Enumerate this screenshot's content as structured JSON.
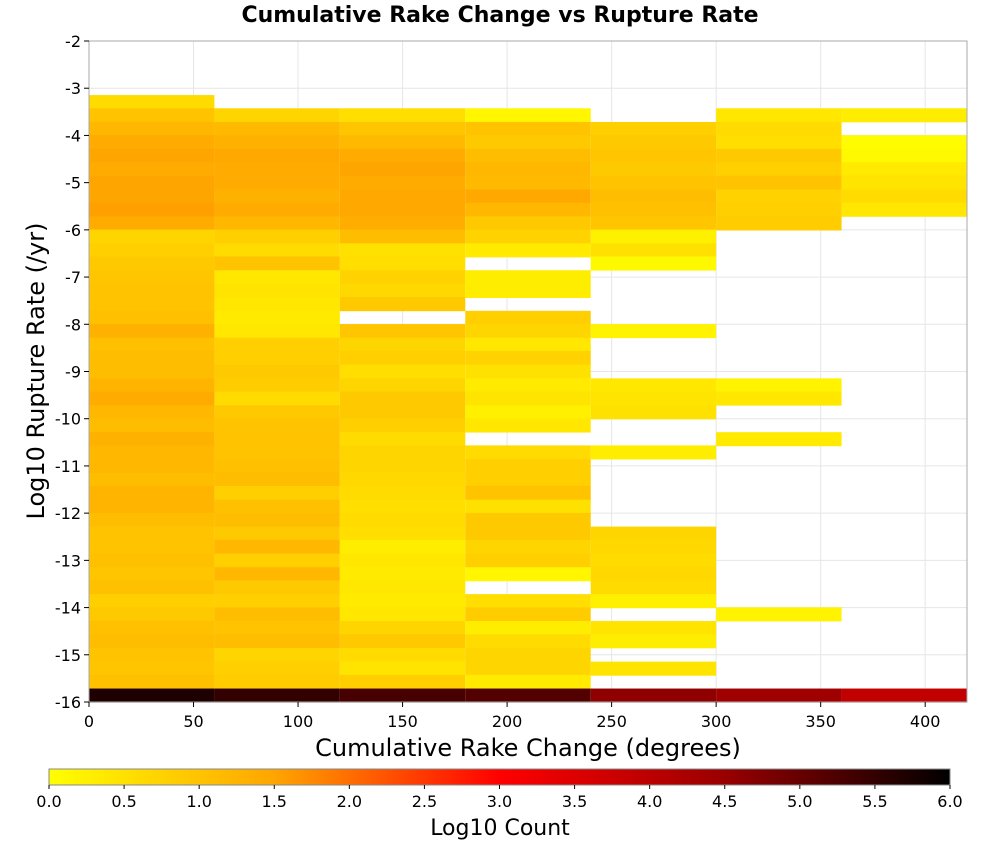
{
  "chart_data": {
    "type": "heatmap",
    "title": "Cumulative Rake Change vs Rupture Rate",
    "xlabel": "Cumulative Rake Change (degrees)",
    "ylabel": "Log10 Rupture Rate (/yr)",
    "xlim": [
      0,
      420
    ],
    "ylim": [
      -16,
      -2
    ],
    "xticks": [
      0,
      50,
      100,
      150,
      200,
      250,
      300,
      350,
      400
    ],
    "yticks": [
      -2,
      -3,
      -4,
      -5,
      -6,
      -7,
      -8,
      -9,
      -10,
      -11,
      -12,
      -13,
      -14,
      -15,
      -16
    ],
    "grid": true,
    "x_bin_width": 60,
    "y_bin_height": 0.285,
    "colorscale": {
      "label": "Log10 Count",
      "min": 0.0,
      "max": 6.0,
      "ticks": [
        "0.0",
        "0.5",
        "1.0",
        "1.5",
        "2.0",
        "2.5",
        "3.0",
        "3.5",
        "4.0",
        "4.5",
        "5.0",
        "5.5",
        "6.0"
      ],
      "stops": [
        "#ffff00",
        "#ffa500",
        "#ff0000",
        "#990000",
        "#000000"
      ]
    },
    "columns": [
      {
        "x_start": 0,
        "cells": [
          {
            "y": -3.43,
            "v": 0.6
          },
          {
            "y": -3.71,
            "v": 1.0
          },
          {
            "y": -4.0,
            "v": 1.2
          },
          {
            "y": -4.28,
            "v": 1.4
          },
          {
            "y": -4.57,
            "v": 1.5
          },
          {
            "y": -4.85,
            "v": 1.4
          },
          {
            "y": -5.14,
            "v": 1.5
          },
          {
            "y": -5.43,
            "v": 1.5
          },
          {
            "y": -5.71,
            "v": 1.55
          },
          {
            "y": -6.0,
            "v": 1.4
          },
          {
            "y": -6.28,
            "v": 0.7
          },
          {
            "y": -6.57,
            "v": 0.8
          },
          {
            "y": -6.85,
            "v": 0.9
          },
          {
            "y": -7.14,
            "v": 0.95
          },
          {
            "y": -7.43,
            "v": 1.0
          },
          {
            "y": -7.71,
            "v": 1.0
          },
          {
            "y": -8.0,
            "v": 1.05
          },
          {
            "y": -8.28,
            "v": 1.3
          },
          {
            "y": -8.57,
            "v": 1.05
          },
          {
            "y": -8.85,
            "v": 1.1
          },
          {
            "y": -9.14,
            "v": 1.1
          },
          {
            "y": -9.43,
            "v": 1.25
          },
          {
            "y": -9.71,
            "v": 1.4
          },
          {
            "y": -10.0,
            "v": 1.2
          },
          {
            "y": -10.28,
            "v": 1.1
          },
          {
            "y": -10.57,
            "v": 1.3
          },
          {
            "y": -10.85,
            "v": 1.2
          },
          {
            "y": -11.14,
            "v": 1.2
          },
          {
            "y": -11.43,
            "v": 1.1
          },
          {
            "y": -11.71,
            "v": 1.25
          },
          {
            "y": -12.0,
            "v": 1.25
          },
          {
            "y": -12.28,
            "v": 1.1
          },
          {
            "y": -12.57,
            "v": 1.0
          },
          {
            "y": -12.85,
            "v": 1.0
          },
          {
            "y": -13.14,
            "v": 1.05
          },
          {
            "y": -13.43,
            "v": 0.95
          },
          {
            "y": -13.71,
            "v": 1.05
          },
          {
            "y": -14.0,
            "v": 0.8
          },
          {
            "y": -14.28,
            "v": 0.9
          },
          {
            "y": -14.57,
            "v": 1.05
          },
          {
            "y": -14.85,
            "v": 1.1
          },
          {
            "y": -15.14,
            "v": 1.0
          },
          {
            "y": -15.43,
            "v": 0.95
          },
          {
            "y": -15.71,
            "v": 1.05
          },
          {
            "y": -16.0,
            "v": 5.7
          }
        ]
      },
      {
        "x_start": 60,
        "cells": [
          {
            "y": -3.71,
            "v": 0.7
          },
          {
            "y": -4.0,
            "v": 1.15
          },
          {
            "y": -4.28,
            "v": 1.3
          },
          {
            "y": -4.57,
            "v": 1.45
          },
          {
            "y": -4.85,
            "v": 1.4
          },
          {
            "y": -5.14,
            "v": 1.4
          },
          {
            "y": -5.43,
            "v": 1.3
          },
          {
            "y": -5.71,
            "v": 1.4
          },
          {
            "y": -6.0,
            "v": 1.2
          },
          {
            "y": -6.28,
            "v": 0.8
          },
          {
            "y": -6.57,
            "v": 0.6
          },
          {
            "y": -6.85,
            "v": 1.0
          },
          {
            "y": -7.14,
            "v": 0.4
          },
          {
            "y": -7.43,
            "v": 0.45
          },
          {
            "y": -7.71,
            "v": 0.4
          },
          {
            "y": -8.0,
            "v": 0.35
          },
          {
            "y": -8.28,
            "v": 0.4
          },
          {
            "y": -8.57,
            "v": 0.8
          },
          {
            "y": -8.85,
            "v": 0.8
          },
          {
            "y": -9.14,
            "v": 0.9
          },
          {
            "y": -9.43,
            "v": 0.85
          },
          {
            "y": -9.71,
            "v": 0.6
          },
          {
            "y": -10.0,
            "v": 0.9
          },
          {
            "y": -10.28,
            "v": 1.0
          },
          {
            "y": -10.57,
            "v": 1.0
          },
          {
            "y": -10.85,
            "v": 1.0
          },
          {
            "y": -11.14,
            "v": 1.05
          },
          {
            "y": -11.43,
            "v": 1.1
          },
          {
            "y": -11.71,
            "v": 0.8
          },
          {
            "y": -12.0,
            "v": 1.05
          },
          {
            "y": -12.28,
            "v": 1.1
          },
          {
            "y": -12.57,
            "v": 0.9
          },
          {
            "y": -12.85,
            "v": 1.2
          },
          {
            "y": -13.14,
            "v": 0.8
          },
          {
            "y": -13.43,
            "v": 1.2
          },
          {
            "y": -13.71,
            "v": 0.9
          },
          {
            "y": -14.0,
            "v": 0.8
          },
          {
            "y": -14.28,
            "v": 1.1
          },
          {
            "y": -14.57,
            "v": 1.0
          },
          {
            "y": -14.85,
            "v": 1.1
          },
          {
            "y": -15.14,
            "v": 0.7
          },
          {
            "y": -15.43,
            "v": 0.8
          },
          {
            "y": -15.71,
            "v": 0.85
          },
          {
            "y": -16.0,
            "v": 5.5
          }
        ]
      },
      {
        "x_start": 120,
        "cells": [
          {
            "y": -3.71,
            "v": 0.55
          },
          {
            "y": -4.0,
            "v": 0.95
          },
          {
            "y": -4.28,
            "v": 1.15
          },
          {
            "y": -4.57,
            "v": 1.4
          },
          {
            "y": -4.85,
            "v": 1.5
          },
          {
            "y": -5.14,
            "v": 1.4
          },
          {
            "y": -5.43,
            "v": 1.45
          },
          {
            "y": -5.71,
            "v": 1.45
          },
          {
            "y": -6.0,
            "v": 1.35
          },
          {
            "y": -6.28,
            "v": 1.1
          },
          {
            "y": -6.57,
            "v": 0.5
          },
          {
            "y": -6.85,
            "v": 0.55
          },
          {
            "y": -7.14,
            "v": 0.75
          },
          {
            "y": -7.43,
            "v": 0.65
          },
          {
            "y": -7.71,
            "v": 0.9
          },
          {
            "y": -8.28,
            "v": 0.95
          },
          {
            "y": -8.57,
            "v": 0.7
          },
          {
            "y": -8.85,
            "v": 0.8
          },
          {
            "y": -9.14,
            "v": 0.55
          },
          {
            "y": -9.43,
            "v": 0.7
          },
          {
            "y": -9.71,
            "v": 0.9
          },
          {
            "y": -10.0,
            "v": 0.9
          },
          {
            "y": -10.28,
            "v": 0.8
          },
          {
            "y": -10.57,
            "v": 0.6
          },
          {
            "y": -10.85,
            "v": 0.7
          },
          {
            "y": -11.14,
            "v": 0.7
          },
          {
            "y": -11.43,
            "v": 0.65
          },
          {
            "y": -11.71,
            "v": 0.6
          },
          {
            "y": -12.0,
            "v": 0.55
          },
          {
            "y": -12.28,
            "v": 0.6
          },
          {
            "y": -12.57,
            "v": 0.55
          },
          {
            "y": -12.85,
            "v": 0.3
          },
          {
            "y": -13.14,
            "v": 0.4
          },
          {
            "y": -13.43,
            "v": 0.35
          },
          {
            "y": -13.71,
            "v": 0.4
          },
          {
            "y": -14.0,
            "v": 0.35
          },
          {
            "y": -14.28,
            "v": 0.4
          },
          {
            "y": -14.57,
            "v": 0.7
          },
          {
            "y": -14.85,
            "v": 0.9
          },
          {
            "y": -15.14,
            "v": 0.6
          },
          {
            "y": -15.43,
            "v": 0.45
          },
          {
            "y": -15.71,
            "v": 0.8
          },
          {
            "y": -16.0,
            "v": 5.3
          }
        ]
      },
      {
        "x_start": 180,
        "cells": [
          {
            "y": -3.71,
            "v": 0.15
          },
          {
            "y": -4.0,
            "v": 1.0
          },
          {
            "y": -4.28,
            "v": 0.9
          },
          {
            "y": -4.57,
            "v": 1.1
          },
          {
            "y": -4.85,
            "v": 1.2
          },
          {
            "y": -5.14,
            "v": 1.15
          },
          {
            "y": -5.43,
            "v": 1.45
          },
          {
            "y": -5.71,
            "v": 1.2
          },
          {
            "y": -6.0,
            "v": 0.9
          },
          {
            "y": -6.28,
            "v": 0.75
          },
          {
            "y": -6.57,
            "v": 0.35
          },
          {
            "y": -7.14,
            "v": 0.3
          },
          {
            "y": -7.43,
            "v": 0.3
          },
          {
            "y": -8.0,
            "v": 0.8
          },
          {
            "y": -8.28,
            "v": 0.7
          },
          {
            "y": -8.57,
            "v": 0.4
          },
          {
            "y": -8.85,
            "v": 0.75
          },
          {
            "y": -9.14,
            "v": 0.5
          },
          {
            "y": -9.43,
            "v": 0.35
          },
          {
            "y": -9.71,
            "v": 0.45
          },
          {
            "y": -10.0,
            "v": 0.25
          },
          {
            "y": -10.28,
            "v": 0.4
          },
          {
            "y": -10.85,
            "v": 0.6
          },
          {
            "y": -11.14,
            "v": 0.8
          },
          {
            "y": -11.43,
            "v": 0.8
          },
          {
            "y": -11.71,
            "v": 1.0
          },
          {
            "y": -12.0,
            "v": 0.5
          },
          {
            "y": -12.28,
            "v": 0.9
          },
          {
            "y": -12.57,
            "v": 0.9
          },
          {
            "y": -12.85,
            "v": 0.7
          },
          {
            "y": -13.14,
            "v": 0.8
          },
          {
            "y": -13.43,
            "v": 0.15
          },
          {
            "y": -14.0,
            "v": 0.55
          },
          {
            "y": -14.28,
            "v": 0.85
          },
          {
            "y": -14.57,
            "v": 0.3
          },
          {
            "y": -14.85,
            "v": 0.6
          },
          {
            "y": -15.14,
            "v": 0.7
          },
          {
            "y": -15.43,
            "v": 0.7
          },
          {
            "y": -15.71,
            "v": 0.35
          },
          {
            "y": -16.0,
            "v": 5.2
          }
        ]
      },
      {
        "x_start": 240,
        "cells": [
          {
            "y": -4.0,
            "v": 0.8
          },
          {
            "y": -4.28,
            "v": 0.9
          },
          {
            "y": -4.57,
            "v": 0.95
          },
          {
            "y": -4.85,
            "v": 0.9
          },
          {
            "y": -5.14,
            "v": 1.0
          },
          {
            "y": -5.43,
            "v": 1.1
          },
          {
            "y": -5.71,
            "v": 1.05
          },
          {
            "y": -6.0,
            "v": 0.95
          },
          {
            "y": -6.28,
            "v": 0.25
          },
          {
            "y": -6.57,
            "v": 0.5
          },
          {
            "y": -6.85,
            "v": 0.1
          },
          {
            "y": -8.28,
            "v": 0.2
          },
          {
            "y": -9.43,
            "v": 0.4
          },
          {
            "y": -9.71,
            "v": 0.45
          },
          {
            "y": -10.0,
            "v": 0.5
          },
          {
            "y": -10.85,
            "v": 0.3
          },
          {
            "y": -12.57,
            "v": 0.7
          },
          {
            "y": -12.85,
            "v": 0.65
          },
          {
            "y": -13.14,
            "v": 0.6
          },
          {
            "y": -13.43,
            "v": 0.65
          },
          {
            "y": -13.71,
            "v": 0.6
          },
          {
            "y": -14.0,
            "v": 0.25
          },
          {
            "y": -14.57,
            "v": 0.45
          },
          {
            "y": -14.85,
            "v": 0.3
          },
          {
            "y": -15.43,
            "v": 0.45
          },
          {
            "y": -16.0,
            "v": 4.6
          }
        ]
      },
      {
        "x_start": 300,
        "cells": [
          {
            "y": -3.71,
            "v": 0.4
          },
          {
            "y": -4.0,
            "v": 0.6
          },
          {
            "y": -4.28,
            "v": 0.55
          },
          {
            "y": -4.57,
            "v": 0.9
          },
          {
            "y": -4.85,
            "v": 0.8
          },
          {
            "y": -5.14,
            "v": 1.0
          },
          {
            "y": -5.43,
            "v": 0.75
          },
          {
            "y": -5.71,
            "v": 0.8
          },
          {
            "y": -6.0,
            "v": 0.85
          },
          {
            "y": -9.43,
            "v": 0.2
          },
          {
            "y": -9.71,
            "v": 0.4
          },
          {
            "y": -10.57,
            "v": 0.35
          },
          {
            "y": -14.28,
            "v": 0.2
          },
          {
            "y": -16.0,
            "v": 4.4
          }
        ]
      },
      {
        "x_start": 360,
        "cells": [
          {
            "y": -3.71,
            "v": 0.3
          },
          {
            "y": -4.28,
            "v": 0.05
          },
          {
            "y": -4.57,
            "v": 0.1
          },
          {
            "y": -4.85,
            "v": 0.35
          },
          {
            "y": -5.14,
            "v": 0.45
          },
          {
            "y": -5.43,
            "v": 0.6
          },
          {
            "y": -5.71,
            "v": 0.4
          },
          {
            "y": -16.0,
            "v": 3.9
          }
        ]
      }
    ]
  }
}
